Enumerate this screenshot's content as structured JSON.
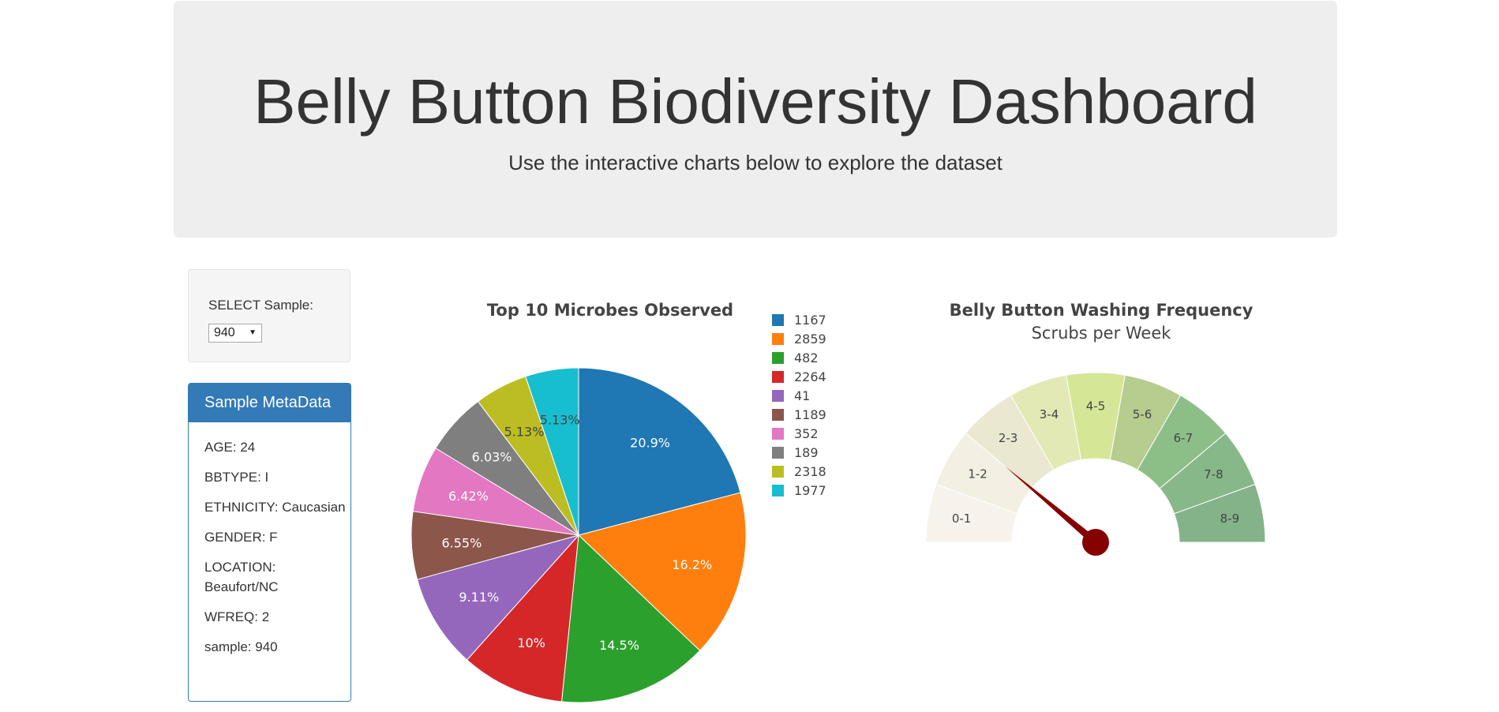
{
  "header": {
    "title": "Belly Button Biodiversity Dashboard",
    "subtitle": "Use the interactive charts below to explore the dataset"
  },
  "selector": {
    "label": "SELECT Sample:",
    "value": "940"
  },
  "metadata_panel": {
    "title": "Sample MetaData",
    "items": [
      "AGE: 24",
      "BBTYPE: I",
      "ETHNICITY: Caucasian",
      "GENDER: F",
      "LOCATION: Beaufort/NC",
      "WFREQ: 2",
      "sample: 940"
    ]
  },
  "chart_data": [
    {
      "type": "pie",
      "title": "Top 10 Microbes Observed",
      "labels": [
        "1167",
        "2859",
        "482",
        "2264",
        "41",
        "1189",
        "352",
        "189",
        "2318",
        "1977"
      ],
      "values": [
        20.9,
        16.2,
        14.5,
        10,
        9.11,
        6.55,
        6.42,
        6.03,
        5.13,
        5.13
      ],
      "value_labels": [
        "20.9%",
        "16.2%",
        "14.5%",
        "10%",
        "9.11%",
        "6.55%",
        "6.42%",
        "6.03%",
        "5.13%",
        "5.13%"
      ],
      "colors": [
        "#1f77b4",
        "#ff7f0e",
        "#2ca02c",
        "#d62728",
        "#9467bd",
        "#8c564b",
        "#e377c2",
        "#7f7f7f",
        "#bcbd22",
        "#17becf"
      ],
      "legend_placement": "right"
    },
    {
      "type": "gauge",
      "title": "Belly Button Washing Frequency",
      "subtitle": "Scrubs per Week",
      "range": [
        0,
        9
      ],
      "value": 2,
      "segments": [
        "0-1",
        "1-2",
        "2-3",
        "3-4",
        "4-5",
        "5-6",
        "6-7",
        "7-8",
        "8-9"
      ],
      "segment_colors": [
        "#f7f3ec",
        "#f3efe2",
        "#ebe8d1",
        "#e3e9b5",
        "#d5e697",
        "#b7cc8f",
        "#8cbf88",
        "#87b889",
        "#84b389"
      ],
      "needle_color": "#850000"
    }
  ]
}
